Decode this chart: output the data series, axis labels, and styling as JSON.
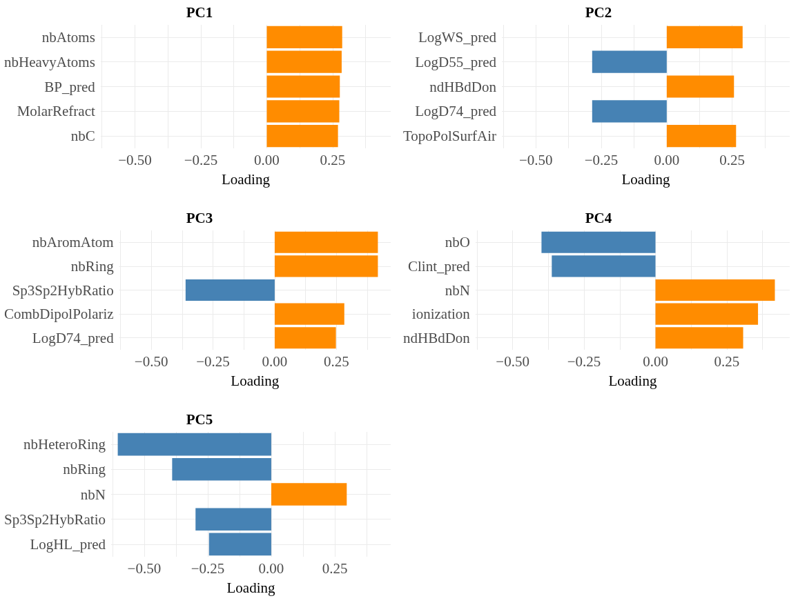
{
  "chart_data": [
    {
      "type": "bar",
      "orientation": "horizontal",
      "title": "PC1",
      "xlabel": "Loading",
      "categories": [
        "nbAtoms",
        "nbHeavyAtoms",
        "BP_pred",
        "MolarRefract",
        "nbC"
      ],
      "values": [
        0.286,
        0.284,
        0.277,
        0.275,
        0.27
      ],
      "colors": [
        "#ff8c00",
        "#ff8c00",
        "#ff8c00",
        "#ff8c00",
        "#ff8c00"
      ],
      "xlim": [
        -0.63,
        0.47
      ],
      "xticks": [
        {
          "value": -0.625,
          "label": null
        },
        {
          "value": -0.5,
          "label": "−0.50"
        },
        {
          "value": -0.375,
          "label": null
        },
        {
          "value": -0.25,
          "label": "−0.25"
        },
        {
          "value": -0.125,
          "label": null
        },
        {
          "value": 0,
          "label": "0.00"
        },
        {
          "value": 0.125,
          "label": null
        },
        {
          "value": 0.25,
          "label": "0.25"
        },
        {
          "value": 0.375,
          "label": null
        }
      ],
      "grid": true
    },
    {
      "type": "bar",
      "orientation": "horizontal",
      "title": "PC2",
      "xlabel": "Loading",
      "categories": [
        "LogWS_pred",
        "LogD55_pred",
        "ndHBdDon",
        "LogD74_pred",
        "TopoPolSurfAir"
      ],
      "values": [
        0.29,
        -0.285,
        0.257,
        -0.285,
        0.265
      ],
      "colors": [
        "#ff8c00",
        "#4682b4",
        "#ff8c00",
        "#4682b4",
        "#ff8c00"
      ],
      "xlim": [
        -0.63,
        0.47
      ],
      "xticks": [
        {
          "value": -0.625,
          "label": null
        },
        {
          "value": -0.5,
          "label": "−0.50"
        },
        {
          "value": -0.375,
          "label": null
        },
        {
          "value": -0.25,
          "label": "−0.25"
        },
        {
          "value": -0.125,
          "label": null
        },
        {
          "value": 0,
          "label": "0.00"
        },
        {
          "value": 0.125,
          "label": null
        },
        {
          "value": 0.25,
          "label": "0.25"
        },
        {
          "value": 0.375,
          "label": null
        }
      ],
      "grid": true
    },
    {
      "type": "bar",
      "orientation": "horizontal",
      "title": "PC3",
      "xlabel": "Loading",
      "categories": [
        "nbAromAtom",
        "nbRing",
        "Sp3Sp2HybRatio",
        "CombDipolPolariz",
        "LogD74_pred"
      ],
      "values": [
        0.418,
        0.418,
        -0.361,
        0.282,
        0.248
      ],
      "colors": [
        "#ff8c00",
        "#ff8c00",
        "#4682b4",
        "#ff8c00",
        "#ff8c00"
      ],
      "xlim": [
        -0.63,
        0.47
      ],
      "xticks": [
        {
          "value": -0.625,
          "label": null
        },
        {
          "value": -0.5,
          "label": "−0.50"
        },
        {
          "value": -0.375,
          "label": null
        },
        {
          "value": -0.25,
          "label": "−0.25"
        },
        {
          "value": -0.125,
          "label": null
        },
        {
          "value": 0,
          "label": "0.00"
        },
        {
          "value": 0.125,
          "label": null
        },
        {
          "value": 0.25,
          "label": "0.25"
        },
        {
          "value": 0.375,
          "label": null
        }
      ],
      "grid": true
    },
    {
      "type": "bar",
      "orientation": "horizontal",
      "title": "PC4",
      "xlabel": "Loading",
      "categories": [
        "nbO",
        "Clint_pred",
        "nbN",
        "ionization",
        "ndHBdDon"
      ],
      "values": [
        -0.399,
        -0.363,
        0.418,
        0.359,
        0.307
      ],
      "colors": [
        "#4682b4",
        "#4682b4",
        "#ff8c00",
        "#ff8c00",
        "#ff8c00"
      ],
      "xlim": [
        -0.63,
        0.47
      ],
      "xticks": [
        {
          "value": -0.625,
          "label": null
        },
        {
          "value": -0.5,
          "label": "−0.50"
        },
        {
          "value": -0.375,
          "label": null
        },
        {
          "value": -0.25,
          "label": "−0.25"
        },
        {
          "value": -0.125,
          "label": null
        },
        {
          "value": 0,
          "label": "0.00"
        },
        {
          "value": 0.125,
          "label": null
        },
        {
          "value": 0.25,
          "label": "0.25"
        },
        {
          "value": 0.375,
          "label": null
        }
      ],
      "grid": true
    },
    {
      "type": "bar",
      "orientation": "horizontal",
      "title": "PC5",
      "xlabel": "Loading",
      "categories": [
        "nbHeteroRing",
        "nbRing",
        "nbN",
        "Sp3Sp2HybRatio",
        "LogHL_pred"
      ],
      "values": [
        -0.604,
        -0.39,
        0.297,
        -0.298,
        -0.245
      ],
      "colors": [
        "#4682b4",
        "#4682b4",
        "#ff8c00",
        "#4682b4",
        "#4682b4"
      ],
      "xlim": [
        -0.63,
        0.47
      ],
      "xticks": [
        {
          "value": -0.625,
          "label": null
        },
        {
          "value": -0.5,
          "label": "−0.50"
        },
        {
          "value": -0.375,
          "label": null
        },
        {
          "value": -0.25,
          "label": "−0.25"
        },
        {
          "value": -0.125,
          "label": null
        },
        {
          "value": 0,
          "label": "0.00"
        },
        {
          "value": 0.125,
          "label": null
        },
        {
          "value": 0.25,
          "label": "0.25"
        },
        {
          "value": 0.375,
          "label": null
        }
      ],
      "grid": true
    }
  ]
}
